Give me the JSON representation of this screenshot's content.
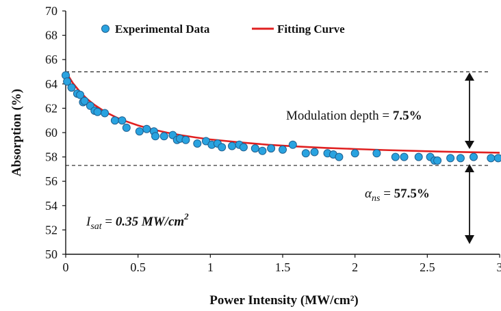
{
  "chart_data": {
    "type": "scatter",
    "xlabel": "Power Intensity (MW/cm²)",
    "ylabel": "Absorption (%)",
    "xlim": [
      0,
      3
    ],
    "ylim": [
      50,
      70
    ],
    "x_ticks": [
      "0",
      "0.5",
      "1",
      "1.5",
      "2",
      "2.5",
      "3"
    ],
    "y_ticks": [
      "50",
      "52",
      "54",
      "56",
      "58",
      "60",
      "62",
      "64",
      "66",
      "68",
      "70"
    ],
    "grid": false,
    "legend_position": "top-left",
    "series": [
      {
        "name": "Experimental Data",
        "kind": "scatter",
        "color": "#29a3e0",
        "x": [
          0.0,
          0.01,
          0.04,
          0.08,
          0.1,
          0.12,
          0.13,
          0.17,
          0.2,
          0.22,
          0.27,
          0.34,
          0.39,
          0.42,
          0.51,
          0.56,
          0.61,
          0.62,
          0.68,
          0.74,
          0.77,
          0.79,
          0.83,
          0.91,
          0.97,
          1.01,
          1.05,
          1.08,
          1.15,
          1.2,
          1.23,
          1.31,
          1.36,
          1.42,
          1.5,
          1.57,
          1.66,
          1.72,
          1.81,
          1.85,
          1.89,
          2.0,
          2.15,
          2.28,
          2.34,
          2.44,
          2.52,
          2.55,
          2.57,
          2.66,
          2.73,
          2.82,
          2.94,
          2.99
        ],
        "y": [
          64.7,
          64.2,
          63.7,
          63.2,
          63.1,
          62.5,
          62.6,
          62.2,
          61.8,
          61.7,
          61.6,
          61.0,
          61.0,
          60.4,
          60.1,
          60.3,
          60.1,
          59.7,
          59.7,
          59.8,
          59.4,
          59.5,
          59.4,
          59.1,
          59.3,
          59.0,
          59.1,
          58.8,
          58.9,
          59.0,
          58.8,
          58.7,
          58.5,
          58.7,
          58.6,
          59.0,
          58.3,
          58.4,
          58.3,
          58.2,
          58.0,
          58.3,
          58.3,
          58.0,
          58.0,
          58.0,
          58.0,
          57.7,
          57.7,
          57.9,
          57.9,
          58.0,
          57.9,
          57.9
        ]
      },
      {
        "name": "Fitting Curve",
        "kind": "line",
        "color": "#e02020",
        "model": {
          "alpha_ns": 57.5,
          "delta": 7.5,
          "i_sat": 0.35
        },
        "x": [
          0.0,
          0.05,
          0.1,
          0.15,
          0.2,
          0.25,
          0.3,
          0.35,
          0.4,
          0.5,
          0.6,
          0.7,
          0.8,
          0.9,
          1.0,
          1.2,
          1.4,
          1.6,
          1.8,
          2.0,
          2.2,
          2.4,
          2.6,
          2.8,
          3.0
        ],
        "y": [
          65.0,
          64.06,
          63.33,
          62.75,
          62.27,
          61.88,
          61.54,
          61.25,
          61.0,
          60.59,
          60.26,
          60.0,
          59.78,
          59.6,
          59.44,
          59.2,
          59.0,
          58.86,
          58.74,
          58.65,
          58.57,
          58.5,
          58.44,
          58.39,
          58.35
        ]
      }
    ],
    "reference_lines": [
      {
        "y": 65.0,
        "style": "dashed"
      },
      {
        "y": 57.3,
        "style": "dashed"
      }
    ],
    "annotations": {
      "modulation_prefix": "Modulation depth = ",
      "modulation_value": "7.5%",
      "alpha_symbol": "α",
      "alpha_subscript": "ns",
      "alpha_equals": " = ",
      "alpha_value": "57.5%",
      "isat_symbol": "I",
      "isat_subscript": "sat",
      "isat_equals": " = ",
      "isat_value": "0.35 MW/cm",
      "isat_superscript": "2"
    }
  }
}
